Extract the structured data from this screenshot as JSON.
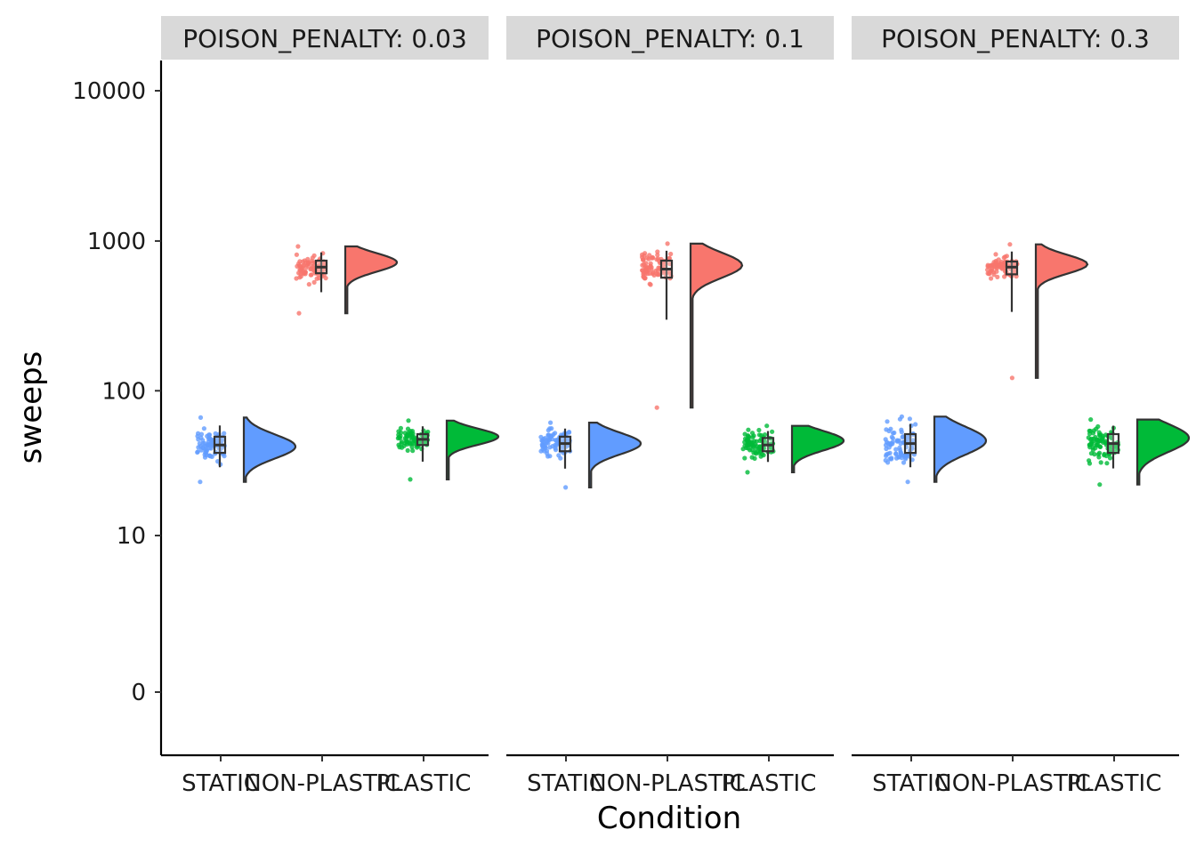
{
  "chart_data": {
    "type": "raincloud",
    "xlabel": "Condition",
    "ylabel": "sweeps",
    "y_scale": "log10(1 + y)",
    "y_ticks": [
      "0",
      "10",
      "100",
      "1000",
      "10000"
    ],
    "categories": [
      "STATIC",
      "NON-PLASTIC",
      "PLASTIC"
    ],
    "colors": {
      "STATIC": "#619CFF",
      "NON-PLASTIC": "#F8766D",
      "PLASTIC": "#00BA38"
    },
    "grid": false,
    "legend": "none",
    "panels": [
      {
        "facet_label": "POISON_PENALTY: 0.03",
        "groups": [
          {
            "condition": "STATIC",
            "min": 24,
            "q1": 38,
            "median": 43,
            "q3": 49,
            "max": 66,
            "mode": 42
          },
          {
            "condition": "NON-PLASTIC",
            "min": 330,
            "q1": 610,
            "median": 670,
            "q3": 740,
            "max": 920,
            "mode": 720
          },
          {
            "condition": "PLASTIC",
            "min": 25,
            "q1": 43,
            "median": 47,
            "q3": 51,
            "max": 63,
            "mode": 49
          }
        ]
      },
      {
        "facet_label": "POISON_PENALTY: 0.1",
        "groups": [
          {
            "condition": "STATIC",
            "min": 22,
            "q1": 39,
            "median": 44,
            "q3": 49,
            "max": 61,
            "mode": 44
          },
          {
            "condition": "NON-PLASTIC",
            "min": 77,
            "q1": 570,
            "median": 650,
            "q3": 740,
            "max": 960,
            "mode": 690
          },
          {
            "condition": "PLASTIC",
            "min": 28,
            "q1": 39,
            "median": 43,
            "q3": 48,
            "max": 58,
            "mode": 46
          }
        ]
      },
      {
        "facet_label": "POISON_PENALTY: 0.3",
        "groups": [
          {
            "condition": "STATIC",
            "min": 24,
            "q1": 38,
            "median": 44,
            "q3": 51,
            "max": 67,
            "mode": 46
          },
          {
            "condition": "NON-PLASTIC",
            "min": 122,
            "q1": 600,
            "median": 670,
            "q3": 730,
            "max": 950,
            "mode": 700
          },
          {
            "condition": "PLASTIC",
            "min": 23,
            "q1": 38,
            "median": 44,
            "q3": 51,
            "max": 64,
            "mode": 48
          }
        ]
      }
    ]
  }
}
